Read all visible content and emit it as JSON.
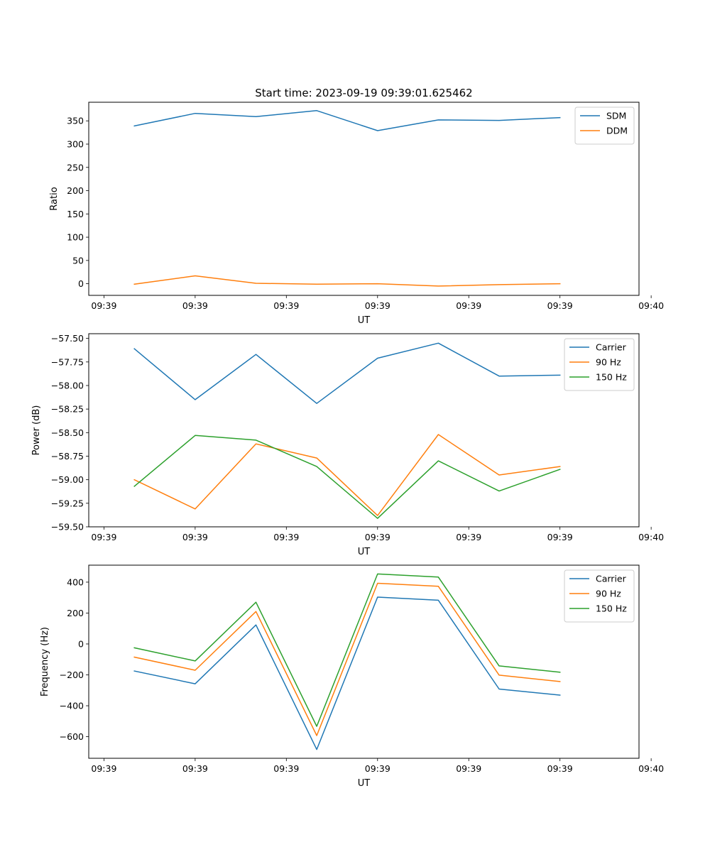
{
  "figure_title": "Start time: 2023-09-19 09:39:01.625462",
  "colors": {
    "c0": "#1f77b4",
    "c1": "#ff7f0e",
    "c2": "#2ca02c"
  },
  "chart_data": [
    {
      "type": "line",
      "title": "Start time: 2023-09-19 09:39:01.625462",
      "xlabel": "UT",
      "ylabel": "Ratio",
      "x_ticks": [
        "09:39",
        "09:39",
        "09:39",
        "09:39",
        "09:39",
        "09:39",
        "09:40"
      ],
      "x": [
        1,
        2,
        3,
        4,
        5,
        6,
        7,
        8
      ],
      "xlim": [
        0.25,
        9.3
      ],
      "ylim": [
        -25,
        390
      ],
      "y_ticks": [
        0,
        50,
        100,
        150,
        200,
        250,
        300,
        350
      ],
      "y_tick_labels": [
        "0",
        "50",
        "100",
        "150",
        "200",
        "250",
        "300",
        "350"
      ],
      "legend_position": "top-right",
      "series": [
        {
          "name": "SDM",
          "color": "#1f77b4",
          "values": [
            339,
            366,
            359,
            372,
            329,
            352,
            351,
            357
          ]
        },
        {
          "name": "DDM",
          "color": "#ff7f0e",
          "values": [
            -1,
            17,
            1,
            -1,
            0,
            -5,
            -2,
            0
          ]
        }
      ]
    },
    {
      "type": "line",
      "title": "",
      "xlabel": "UT",
      "ylabel": "Power (dB)",
      "x_ticks": [
        "09:39",
        "09:39",
        "09:39",
        "09:39",
        "09:39",
        "09:39",
        "09:40"
      ],
      "x": [
        1,
        2,
        3,
        4,
        5,
        6,
        7,
        8
      ],
      "xlim": [
        0.25,
        9.3
      ],
      "ylim": [
        -59.5,
        -57.45
      ],
      "y_ticks": [
        -59.5,
        -59.25,
        -59.0,
        -58.75,
        -58.5,
        -58.25,
        -58.0,
        -57.75,
        -57.5
      ],
      "y_tick_labels": [
        "−59.50",
        "−59.25",
        "−59.00",
        "−58.75",
        "−58.50",
        "−58.25",
        "−58.00",
        "−57.75",
        "−57.50"
      ],
      "legend_position": "top-right",
      "series": [
        {
          "name": "Carrier",
          "color": "#1f77b4",
          "values": [
            -57.61,
            -58.15,
            -57.67,
            -58.19,
            -57.71,
            -57.55,
            -57.9,
            -57.89
          ]
        },
        {
          "name": "90 Hz",
          "color": "#ff7f0e",
          "values": [
            -59.0,
            -59.31,
            -58.62,
            -58.77,
            -59.38,
            -58.52,
            -58.95,
            -58.86
          ]
        },
        {
          "name": "150 Hz",
          "color": "#2ca02c",
          "values": [
            -59.07,
            -58.53,
            -58.58,
            -58.86,
            -59.41,
            -58.8,
            -59.12,
            -58.89
          ]
        }
      ]
    },
    {
      "type": "line",
      "title": "",
      "xlabel": "UT",
      "ylabel": "Frequency (Hz)",
      "x_ticks": [
        "09:39",
        "09:39",
        "09:39",
        "09:39",
        "09:39",
        "09:39",
        "09:40"
      ],
      "x": [
        1,
        2,
        3,
        4,
        5,
        6,
        7,
        8
      ],
      "xlim": [
        0.25,
        9.3
      ],
      "ylim": [
        -740,
        510
      ],
      "y_ticks": [
        -600,
        -400,
        -200,
        0,
        200,
        400
      ],
      "y_tick_labels": [
        "−600",
        "−400",
        "−200",
        "0",
        "200",
        "400"
      ],
      "legend_position": "top-right",
      "series": [
        {
          "name": "Carrier",
          "color": "#1f77b4",
          "values": [
            -175,
            -258,
            123,
            -683,
            303,
            283,
            -292,
            -331
          ]
        },
        {
          "name": "90 Hz",
          "color": "#ff7f0e",
          "values": [
            -85,
            -170,
            210,
            -593,
            393,
            373,
            -202,
            -243
          ]
        },
        {
          "name": "150 Hz",
          "color": "#2ca02c",
          "values": [
            -25,
            -110,
            270,
            -533,
            453,
            433,
            -142,
            -183
          ]
        }
      ]
    }
  ]
}
